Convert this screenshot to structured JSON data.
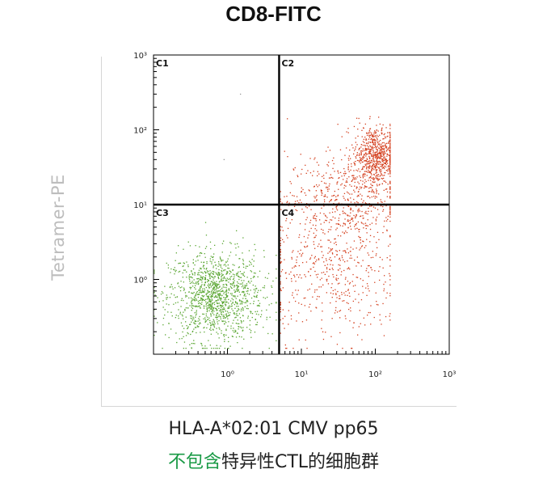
{
  "header": {
    "title": "CD8-FITC"
  },
  "caption": {
    "line1": "HLA-A*02:01 CMV pp65",
    "line2_highlight": "不包含",
    "line2_rest": "特异性CTL的细胞群"
  },
  "chart_data": {
    "type": "scatter",
    "title": "CD8-FITC",
    "ylabel": "Tetramer-PE",
    "x_scale": "log",
    "y_scale": "log",
    "xlim": [
      0.1,
      1000
    ],
    "ylim": [
      0.1,
      1000
    ],
    "x_ticks": [
      {
        "value": 1,
        "label": "10⁰"
      },
      {
        "value": 10,
        "label": "10¹"
      },
      {
        "value": 100,
        "label": "10²"
      },
      {
        "value": 1000,
        "label": "10³"
      }
    ],
    "y_ticks": [
      {
        "value": 1,
        "label": "10⁰"
      },
      {
        "value": 10,
        "label": "10¹"
      },
      {
        "value": 100,
        "label": "10²"
      },
      {
        "value": 1000,
        "label": "10³"
      }
    ],
    "gates": {
      "x": 5,
      "y": 10
    },
    "quadrants": [
      "C1",
      "C2",
      "C3",
      "C4"
    ],
    "colors": {
      "cd8_negative": "#5aa632",
      "cd8_positive": "#d4401f",
      "gate": "#000000"
    },
    "populations": [
      {
        "group": "cd8-negative",
        "x_center": 0.7,
        "y_center": 0.6,
        "x_spread_decades": 0.32,
        "y_spread_decades": 0.3,
        "count": 1300
      },
      {
        "group": "cd8-positive",
        "x_center": 100,
        "y_center": 45,
        "x_spread_decades": 0.15,
        "y_spread_decades": 0.2,
        "count": 700
      },
      {
        "group": "cd8-positive",
        "x_center": 40,
        "y_center": 12,
        "x_spread_decades": 0.4,
        "y_spread_decades": 0.3,
        "count": 500
      },
      {
        "group": "cd8-positive",
        "x_center": 25,
        "y_center": 1.2,
        "x_spread_decades": 0.45,
        "y_spread_decades": 0.45,
        "count": 500
      }
    ]
  }
}
